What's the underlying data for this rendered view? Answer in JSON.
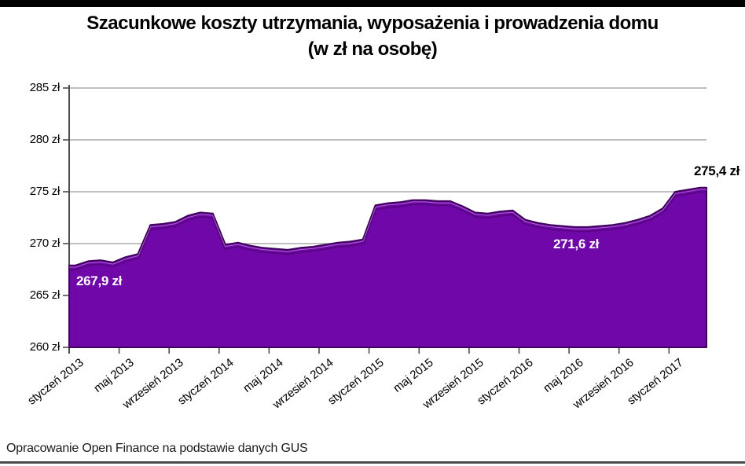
{
  "title": {
    "line1": "Szacunkowe koszty utrzymania, wyposażenia i prowadzenia domu",
    "line2": "(w zł na osobę)"
  },
  "footer": {
    "text": "Opracowanie Open Finance na podstawie danych GUS"
  },
  "colors": {
    "area_fill": "#7007A8",
    "area_outline": "#40015E",
    "bevel_highlight": "rgba(255,255,255,0.38)",
    "bevel_shadow": "rgba(0,0,0,0.20)",
    "gridline": "#9b9b9b",
    "axis": "#4d4d4d",
    "title_text": "#000000",
    "label_on_area": "#ffffff",
    "label_outside": "#000000"
  },
  "chart_data": {
    "type": "area",
    "title": "Szacunkowe koszty utrzymania, wyposażenia i prowadzenia domu (w zł na osobę)",
    "unit": "zł",
    "ylabel": "zł na osobę",
    "ylim": [
      260,
      285
    ],
    "y_step": 5,
    "grid": "horizontal",
    "y_tick_labels": [
      "285 zł",
      "280 zł",
      "275 zł",
      "270 zł",
      "265 zł",
      "260 zł"
    ],
    "x_tick_labels": [
      "styczeń 2013",
      "maj 2013",
      "wrzesień 2013",
      "styczeń 2014",
      "maj 2014",
      "wrzesień 2014",
      "styczeń 2015",
      "maj 2015",
      "wrzesień 2015",
      "styczeń 2016",
      "maj 2016",
      "wrzesień 2016",
      "styczeń 2017"
    ],
    "x": [
      "2013-01",
      "2013-02",
      "2013-03",
      "2013-04",
      "2013-05",
      "2013-06",
      "2013-07",
      "2013-08",
      "2013-09",
      "2013-10",
      "2013-11",
      "2013-12",
      "2014-01",
      "2014-02",
      "2014-03",
      "2014-04",
      "2014-05",
      "2014-06",
      "2014-07",
      "2014-08",
      "2014-09",
      "2014-10",
      "2014-11",
      "2014-12",
      "2015-01",
      "2015-02",
      "2015-03",
      "2015-04",
      "2015-05",
      "2015-06",
      "2015-07",
      "2015-08",
      "2015-09",
      "2015-10",
      "2015-11",
      "2015-12",
      "2016-01",
      "2016-02",
      "2016-03",
      "2016-04",
      "2016-05",
      "2016-06",
      "2016-07",
      "2016-08",
      "2016-09",
      "2016-10",
      "2016-11",
      "2016-12",
      "2017-01",
      "2017-02",
      "2017-03"
    ],
    "values": [
      267.9,
      268.3,
      268.4,
      268.2,
      268.7,
      269.0,
      271.8,
      271.9,
      272.1,
      272.7,
      273.0,
      272.9,
      269.9,
      270.1,
      269.8,
      269.6,
      269.5,
      269.4,
      269.6,
      269.7,
      269.9,
      270.1,
      270.2,
      270.4,
      273.7,
      273.9,
      274.0,
      274.2,
      274.2,
      274.1,
      274.1,
      273.6,
      273.0,
      272.9,
      273.1,
      273.2,
      272.3,
      272.0,
      271.8,
      271.7,
      271.6,
      271.6,
      271.7,
      271.8,
      272.0,
      272.3,
      272.7,
      273.4,
      275.0,
      275.2,
      275.4
    ],
    "point_labels": [
      {
        "text": "267,9 zł",
        "x": "2013-01",
        "value": 267.9,
        "placement": "on-area-start"
      },
      {
        "text": "271,6 zł",
        "x": "2016-06",
        "value": 271.6,
        "placement": "on-area-minimum"
      },
      {
        "text": "275,4 zł",
        "x": "2017-03",
        "value": 275.4,
        "placement": "above-area-end"
      }
    ]
  }
}
